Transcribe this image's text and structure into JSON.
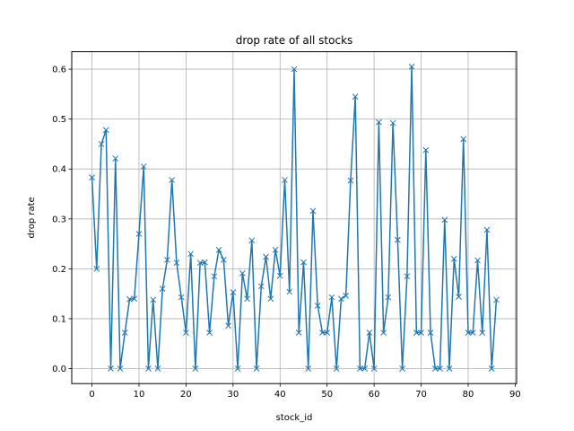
{
  "chart_data": {
    "type": "line",
    "title": "drop rate of all stocks",
    "xlabel": "stock_id",
    "ylabel": "drop rate",
    "xlim": [
      -4.3,
      90.3
    ],
    "ylim": [
      -0.03,
      0.635
    ],
    "xticks": [
      0,
      10,
      20,
      30,
      40,
      50,
      60,
      70,
      80,
      90
    ],
    "yticks": [
      0.0,
      0.1,
      0.2,
      0.3,
      0.4,
      0.5,
      0.6
    ],
    "ytick_labels": [
      "0.0",
      "0.1",
      "0.2",
      "0.3",
      "0.4",
      "0.5",
      "0.6"
    ],
    "grid": true,
    "marker": "x",
    "line_color": "#1f77b4",
    "series": [
      {
        "x": [
          0,
          1,
          2,
          3,
          4,
          5,
          6,
          7,
          8,
          9,
          10,
          11,
          12,
          13,
          14,
          15,
          16,
          17,
          18,
          19,
          20,
          21,
          22,
          23,
          24,
          25,
          26,
          27,
          28,
          29,
          30,
          31,
          32,
          33,
          34,
          35,
          36,
          37,
          38,
          39,
          40,
          41,
          42,
          43,
          44,
          45,
          46,
          47,
          48,
          49,
          50,
          51,
          52,
          53,
          54,
          55,
          56,
          57,
          58,
          59,
          60,
          61,
          62,
          63,
          64,
          65,
          66,
          67,
          68,
          69,
          70,
          71,
          72,
          73,
          74,
          75,
          76,
          77,
          78,
          79,
          80,
          81,
          82,
          83,
          84,
          85,
          86
        ],
        "values": [
          0.383,
          0.2,
          0.45,
          0.478,
          0.0,
          0.421,
          0.0,
          0.072,
          0.139,
          0.14,
          0.27,
          0.405,
          0.0,
          0.138,
          0.0,
          0.16,
          0.218,
          0.378,
          0.212,
          0.143,
          0.072,
          0.23,
          0.0,
          0.212,
          0.213,
          0.072,
          0.185,
          0.238,
          0.218,
          0.086,
          0.153,
          0.0,
          0.191,
          0.14,
          0.257,
          0.0,
          0.165,
          0.224,
          0.14,
          0.238,
          0.186,
          0.378,
          0.154,
          0.6,
          0.072,
          0.213,
          0.0,
          0.316,
          0.126,
          0.072,
          0.072,
          0.143,
          0.0,
          0.14,
          0.146,
          0.377,
          0.545,
          0.0,
          0.0,
          0.072,
          0.0,
          0.494,
          0.072,
          0.143,
          0.492,
          0.258,
          0.0,
          0.185,
          0.605,
          0.072,
          0.072,
          0.438,
          0.072,
          0.0,
          0.0,
          0.298,
          0.0,
          0.22,
          0.144,
          0.46,
          0.072,
          0.072,
          0.217,
          0.072,
          0.278,
          0.0,
          0.138
        ]
      }
    ]
  }
}
